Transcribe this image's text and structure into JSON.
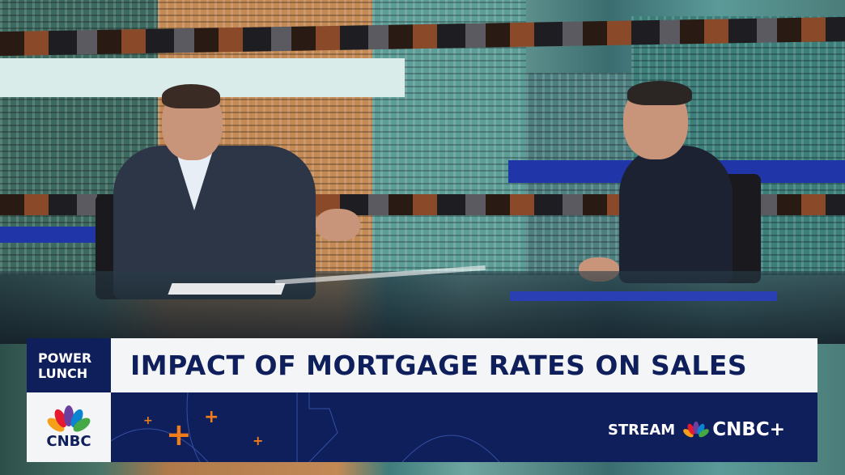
{
  "program": {
    "name_line1": "POWER",
    "name_line2": "LUNCH"
  },
  "headline": "IMPACT OF MORTGAGE RATES ON SALES",
  "network_logo": {
    "text": "CNBC",
    "icon": "peacock-icon"
  },
  "promo": {
    "prefix": "STREAM",
    "brand": "CNBC+",
    "icon": "peacock-icon"
  },
  "colors": {
    "navy": "#0f1f5c",
    "accent_orange": "#f07d1a",
    "panel_white": "#f4f5f7"
  }
}
